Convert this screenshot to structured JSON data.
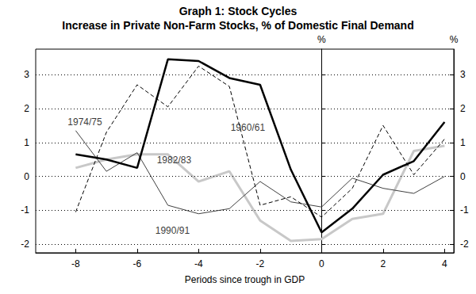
{
  "chart_data": {
    "type": "line",
    "title": "Graph 1: Stock Cycles",
    "subtitle": "Increase in Private Non-Farm Stocks, % of Domestic Final Demand",
    "x_label": "Periods since trough in GDP",
    "y_label": "%",
    "y2_label": "%",
    "x": [
      -8,
      -7,
      -6,
      -5,
      -4,
      -3,
      -2,
      -1,
      0,
      1,
      2,
      3,
      4
    ],
    "xlim": [
      -9.3,
      4.3
    ],
    "xticks": [
      -8,
      -6,
      -4,
      -2,
      0,
      2,
      4
    ],
    "ylim": [
      -2.25,
      3.75
    ],
    "yticks": [
      -2,
      -1,
      0,
      1,
      2,
      3
    ],
    "y2lim": [
      -2.25,
      3.75
    ],
    "y2ticks": [
      -2,
      -1,
      0,
      1,
      2,
      3
    ],
    "grid": true,
    "series": [
      {
        "name": "1982/83",
        "color": "#c8c8c8",
        "line_style": "solid",
        "values": [
          0.25,
          0.5,
          0.65,
          0.65,
          -0.15,
          0.15,
          -1.3,
          -1.9,
          -1.85,
          -1.25,
          -1.1,
          0.75,
          0.9
        ]
      },
      {
        "name": "1990/91",
        "color": "#404040",
        "line_style": "solid",
        "values": [
          1.35,
          0.15,
          0.7,
          -0.85,
          -1.1,
          -0.95,
          -0.15,
          -0.75,
          -0.9,
          -0.05,
          -0.35,
          -0.5,
          0.0
        ]
      },
      {
        "name": "1974/75",
        "color": "#000000",
        "line_style": "dashed",
        "values": [
          -1.05,
          1.3,
          2.7,
          2.05,
          3.25,
          2.65,
          -0.85,
          -0.6,
          -1.2,
          -0.35,
          1.5,
          0.05,
          1.1
        ]
      },
      {
        "name": "1960/61",
        "color": "#000000",
        "line_style": "solid",
        "values": [
          0.65,
          0.5,
          0.25,
          3.45,
          3.4,
          2.9,
          2.7,
          0.2,
          -1.65,
          -0.95,
          0.05,
          0.45,
          1.6
        ]
      }
    ],
    "annotations": [
      {
        "text": "1974/75",
        "x": -7.7,
        "y": 1.6
      },
      {
        "text": "1960/61",
        "x": -2.4,
        "y": 1.45
      },
      {
        "text": "1982/83",
        "x": -4.8,
        "y": 0.47
      },
      {
        "text": "1990/91",
        "x": -4.85,
        "y": -1.6
      }
    ]
  }
}
